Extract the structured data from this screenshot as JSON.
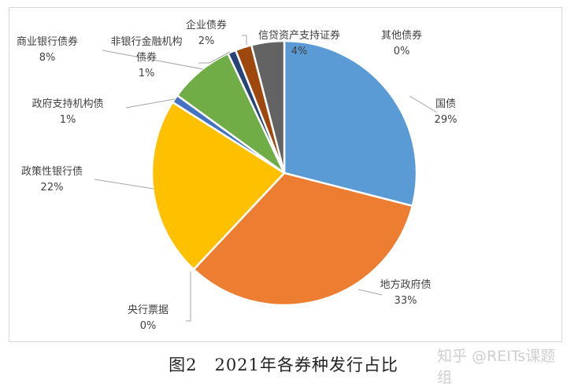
{
  "chart_data": {
    "type": "pie",
    "title": "",
    "start": "top",
    "direction": "clockwise",
    "slices": [
      {
        "label": "国债",
        "value": 29,
        "text": "29%",
        "color": "#5B9BD5"
      },
      {
        "label": "地方政府债",
        "value": 33,
        "text": "33%",
        "color": "#ED7D31"
      },
      {
        "label": "央行票据",
        "value": 0,
        "text": "0%",
        "color": "#A5A5A5"
      },
      {
        "label": "政策性银行债",
        "value": 22,
        "text": "22%",
        "color": "#FFC000"
      },
      {
        "label": "政府支持机构债",
        "value": 1,
        "text": "1%",
        "color": "#4472C4"
      },
      {
        "label": "商业银行债券",
        "value": 8,
        "text": "8%",
        "color": "#70AD47"
      },
      {
        "label": "非银行金融机构债券",
        "value": 1,
        "text": "1%",
        "color": "#264478"
      },
      {
        "label": "企业债券",
        "value": 2,
        "text": "2%",
        "color": "#9E480E"
      },
      {
        "label": "信贷资产支持证券",
        "value": 4,
        "text": "4%",
        "color": "#636363"
      },
      {
        "label": "其他债券",
        "value": 0,
        "text": "0%",
        "color": "#997300"
      }
    ]
  },
  "caption": "图2　2021年各券种发行占比",
  "watermark": "知乎 @REITs课题组"
}
